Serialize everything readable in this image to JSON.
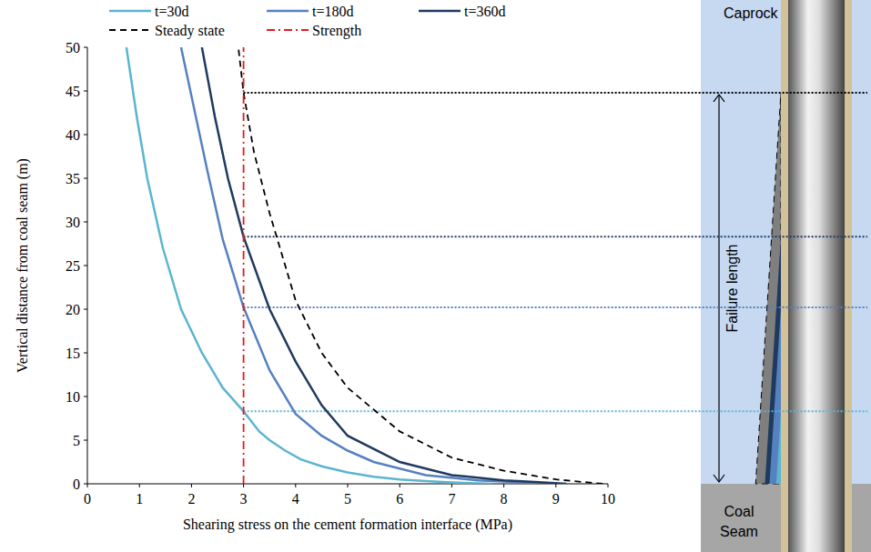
{
  "chart_data": {
    "type": "line",
    "x_label": "Shearing stress on the cement formation interface (MPa)",
    "y_label": "Vertical distance from coal seam (m)",
    "xlim": [
      0,
      10
    ],
    "xticks": [
      0,
      1,
      2,
      3,
      4,
      5,
      6,
      7,
      8,
      9,
      10
    ],
    "ylim": [
      0,
      50
    ],
    "yticks": [
      0,
      5,
      10,
      15,
      20,
      25,
      30,
      35,
      40,
      45,
      50
    ],
    "grid": false,
    "legend": "top",
    "series": [
      {
        "name": "t=30d",
        "color": "#5bb5cf",
        "line_style": "solid",
        "failure_depth": 8.3,
        "x": [
          7.8,
          7.0,
          6.5,
          6.0,
          5.5,
          5.0,
          4.5,
          4.1,
          3.8,
          3.5,
          3.3,
          3.0,
          2.6,
          2.2,
          1.8,
          1.45,
          1.15,
          0.95,
          0.75
        ],
        "values": [
          0,
          0.15,
          0.3,
          0.5,
          0.8,
          1.3,
          2,
          2.8,
          3.8,
          5,
          6,
          8.3,
          11,
          15,
          20,
          27,
          35,
          42,
          50
        ]
      },
      {
        "name": "t=180d",
        "color": "#5681c0",
        "line_style": "solid",
        "failure_depth": 20.2,
        "x": [
          8.9,
          8.2,
          7.5,
          6.5,
          5.5,
          5.0,
          4.5,
          4.0,
          3.5,
          3.0,
          2.6,
          2.3,
          2.05,
          1.8
        ],
        "values": [
          0,
          0.2,
          0.4,
          1,
          2.5,
          3.8,
          5.5,
          8,
          13,
          20.2,
          28,
          36,
          43,
          50
        ]
      },
      {
        "name": "t=360d",
        "color": "#1f3a5f",
        "line_style": "solid",
        "failure_depth": 28.3,
        "x": [
          9.2,
          8.6,
          8.0,
          7.0,
          6.0,
          5.0,
          4.5,
          4.0,
          3.5,
          3.0,
          2.7,
          2.45,
          2.2
        ],
        "values": [
          0,
          0.2,
          0.4,
          1,
          2.5,
          5.5,
          9,
          14,
          20,
          28.3,
          35,
          42,
          50
        ]
      },
      {
        "name": "Steady state",
        "color": "#000000",
        "line_style": "dashed",
        "failure_depth": 44.8,
        "x": [
          9.9,
          9.0,
          8.0,
          7.0,
          6.0,
          5.0,
          4.5,
          4.0,
          3.5,
          3.2,
          3.0,
          2.9
        ],
        "values": [
          0,
          0.5,
          1.5,
          3,
          6,
          11,
          15,
          21,
          31,
          38,
          44.8,
          50
        ]
      },
      {
        "name": "Strength",
        "color": "#e41a1c",
        "line_style": "dashdot",
        "x": [
          3,
          3
        ],
        "values": [
          0,
          50
        ]
      }
    ],
    "diagram": {
      "caprock_label": "Caprock",
      "coal_seam_label": "Coal Seam",
      "failure_length_label": "Failure length"
    }
  }
}
